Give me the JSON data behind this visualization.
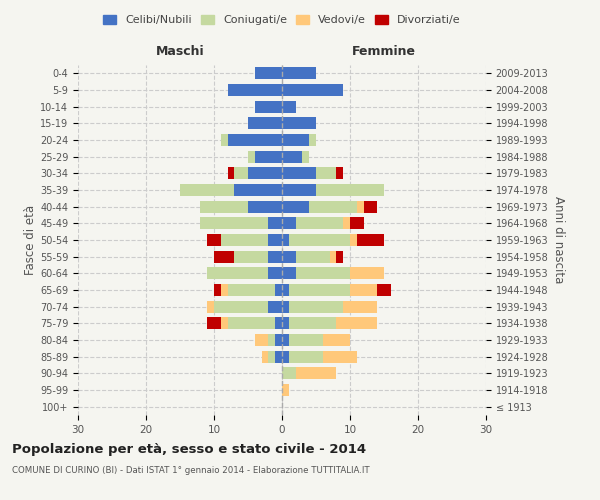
{
  "age_groups": [
    "100+",
    "95-99",
    "90-94",
    "85-89",
    "80-84",
    "75-79",
    "70-74",
    "65-69",
    "60-64",
    "55-59",
    "50-54",
    "45-49",
    "40-44",
    "35-39",
    "30-34",
    "25-29",
    "20-24",
    "15-19",
    "10-14",
    "5-9",
    "0-4"
  ],
  "birth_years": [
    "≤ 1913",
    "1914-1918",
    "1919-1923",
    "1924-1928",
    "1929-1933",
    "1934-1938",
    "1939-1943",
    "1944-1948",
    "1949-1953",
    "1954-1958",
    "1959-1963",
    "1964-1968",
    "1969-1973",
    "1974-1978",
    "1979-1983",
    "1984-1988",
    "1989-1993",
    "1994-1998",
    "1999-2003",
    "2004-2008",
    "2009-2013"
  ],
  "colors": {
    "celibi": "#4472C4",
    "coniugati": "#c5d9a0",
    "vedovi": "#ffc87a",
    "divorziati": "#c00000"
  },
  "males": {
    "celibi": [
      0,
      0,
      0,
      1,
      1,
      1,
      2,
      1,
      2,
      2,
      2,
      2,
      5,
      7,
      5,
      4,
      8,
      5,
      4,
      8,
      4
    ],
    "coniugati": [
      0,
      0,
      0,
      1,
      1,
      7,
      8,
      7,
      9,
      5,
      7,
      10,
      7,
      8,
      2,
      1,
      1,
      0,
      0,
      0,
      0
    ],
    "vedovi": [
      0,
      0,
      0,
      1,
      2,
      1,
      1,
      1,
      0,
      0,
      0,
      0,
      0,
      0,
      0,
      0,
      0,
      0,
      0,
      0,
      0
    ],
    "divorziati": [
      0,
      0,
      0,
      0,
      0,
      2,
      0,
      1,
      0,
      3,
      2,
      0,
      0,
      0,
      1,
      0,
      0,
      0,
      0,
      0,
      0
    ]
  },
  "females": {
    "celibi": [
      0,
      0,
      0,
      1,
      1,
      1,
      1,
      1,
      2,
      2,
      1,
      2,
      4,
      5,
      5,
      3,
      4,
      5,
      2,
      9,
      5
    ],
    "coniugati": [
      0,
      0,
      2,
      5,
      5,
      7,
      8,
      9,
      8,
      5,
      9,
      7,
      7,
      10,
      3,
      1,
      1,
      0,
      0,
      0,
      0
    ],
    "vedovi": [
      0,
      1,
      6,
      5,
      4,
      6,
      5,
      4,
      5,
      1,
      1,
      1,
      1,
      0,
      0,
      0,
      0,
      0,
      0,
      0,
      0
    ],
    "divorziati": [
      0,
      0,
      0,
      0,
      0,
      0,
      0,
      2,
      0,
      1,
      4,
      2,
      2,
      0,
      1,
      0,
      0,
      0,
      0,
      0,
      0
    ]
  },
  "xlim": 30,
  "title": "Popolazione per età, sesso e stato civile - 2014",
  "subtitle": "COMUNE DI CURINO (BI) - Dati ISTAT 1° gennaio 2014 - Elaborazione TUTTITALIA.IT",
  "ylabel_left": "Fasce di età",
  "ylabel_right": "Anni di nascita",
  "header_maschi": "Maschi",
  "header_femmine": "Femmine",
  "legend_labels": [
    "Celibi/Nubili",
    "Coniugati/e",
    "Vedovi/e",
    "Divorziati/e"
  ],
  "bg_color": "#f5f5f0"
}
